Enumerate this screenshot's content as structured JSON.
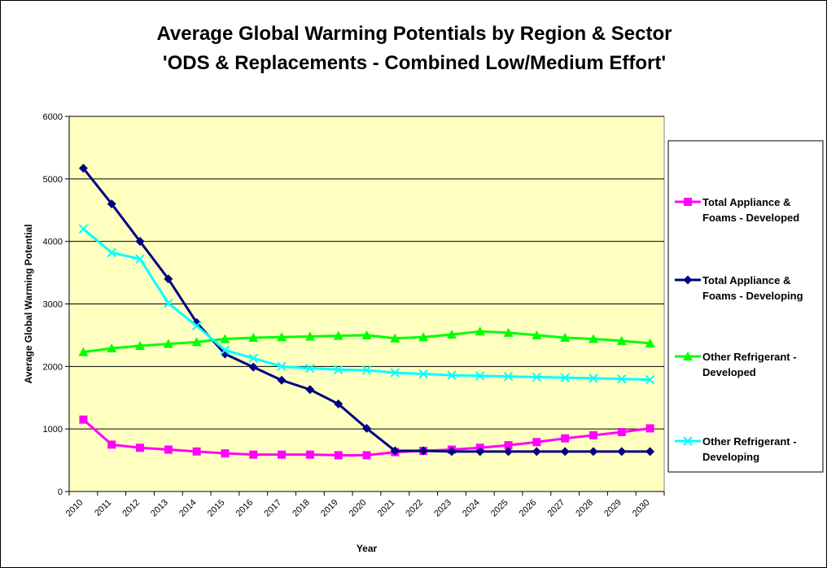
{
  "chart_data": {
    "type": "line",
    "title": "Average Global Warming Potentials by Region & Sector",
    "subtitle": "'ODS & Replacements - Combined Low/Medium Effort'",
    "xlabel": "Year",
    "ylabel": "Average Global Warming Potential",
    "ylim": [
      0,
      6000
    ],
    "yticks": [
      0,
      1000,
      2000,
      3000,
      4000,
      5000,
      6000
    ],
    "grid": true,
    "legend_position": "right",
    "plot_background": "#ffffc0",
    "categories": [
      "2010",
      "2011",
      "2012",
      "2013",
      "2014",
      "2015",
      "2016",
      "2017",
      "2018",
      "2019",
      "2020",
      "2021",
      "2022",
      "2023",
      "2024",
      "2025",
      "2026",
      "2027",
      "2028",
      "2029",
      "2030"
    ],
    "series": [
      {
        "name": "Total Appliance & Foams - Developed",
        "name_lines": [
          "Total Appliance &",
          "Foams - Developed"
        ],
        "color": "#ff00ff",
        "marker": "square",
        "values": [
          1150,
          750,
          700,
          670,
          640,
          610,
          590,
          590,
          590,
          580,
          580,
          630,
          650,
          670,
          700,
          740,
          790,
          850,
          900,
          950,
          1010
        ]
      },
      {
        "name": "Total Appliance & Foams - Developing",
        "name_lines": [
          "Total Appliance &",
          "Foams - Developing"
        ],
        "color": "#000080",
        "marker": "diamond",
        "values": [
          5170,
          4600,
          4000,
          3400,
          2700,
          2200,
          1990,
          1780,
          1630,
          1400,
          1010,
          650,
          650,
          640,
          640,
          640,
          640,
          640,
          640,
          640,
          640
        ]
      },
      {
        "name": "Other Refrigerant - Developed",
        "name_lines": [
          "Other Refrigerant -",
          "Developed"
        ],
        "color": "#00ff00",
        "marker": "triangle",
        "values": [
          2230,
          2290,
          2330,
          2360,
          2390,
          2440,
          2460,
          2470,
          2480,
          2490,
          2500,
          2450,
          2470,
          2510,
          2560,
          2540,
          2500,
          2460,
          2440,
          2410,
          2370
        ]
      },
      {
        "name": "Other Refrigerant - Developing",
        "name_lines": [
          "Other Refrigerant -",
          "Developing"
        ],
        "color": "#00ffff",
        "marker": "x",
        "values": [
          4200,
          3820,
          3720,
          3010,
          2650,
          2260,
          2130,
          2000,
          1970,
          1950,
          1940,
          1900,
          1880,
          1860,
          1850,
          1840,
          1830,
          1820,
          1810,
          1800,
          1790
        ]
      }
    ]
  }
}
